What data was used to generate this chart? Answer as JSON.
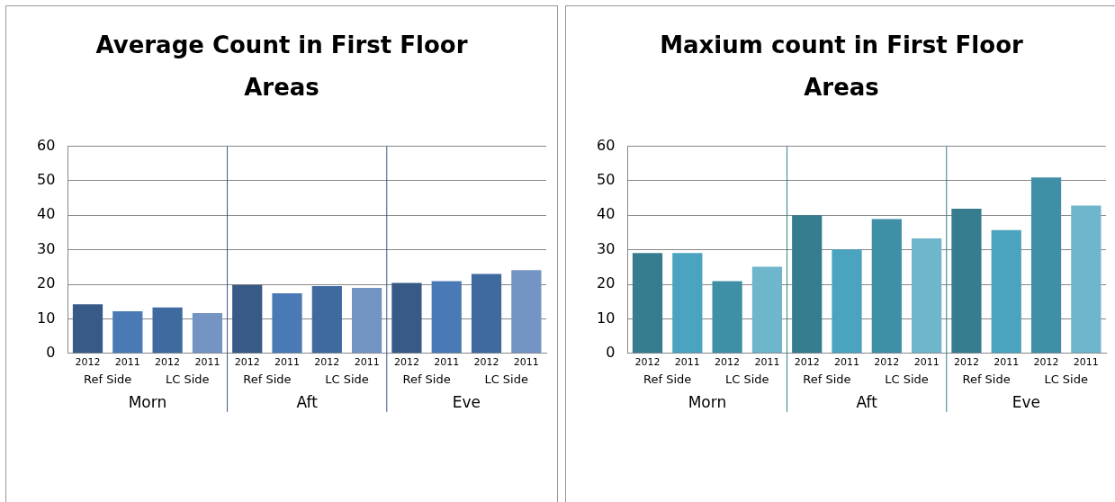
{
  "chart_data": [
    {
      "type": "bar",
      "title": "Average Count in First Floor Areas",
      "categories": [
        "2012",
        "2011",
        "2012",
        "2011",
        "2012",
        "2011",
        "2012",
        "2011",
        "2012",
        "2011",
        "2012",
        "2011"
      ],
      "values": [
        14.2,
        12.2,
        13.3,
        11.7,
        19.8,
        17.4,
        19.5,
        19.0,
        20.4,
        20.9,
        23.0,
        24.1
      ],
      "colors": [
        "#375a87",
        "#4a7ab5",
        "#3f6aa0",
        "#7494c4",
        "#375a87",
        "#4a7ab5",
        "#3f6aa0",
        "#7494c4",
        "#375a87",
        "#4a7ab5",
        "#3f6aa0",
        "#7494c4"
      ],
      "ylim": [
        0,
        60
      ],
      "yticks": [
        0,
        10,
        20,
        30,
        40,
        50,
        60
      ],
      "grid": "y",
      "legend": false,
      "annotations": [
        "Ref Side",
        "LC Side",
        "Ref Side",
        "LC Side",
        "Ref Side",
        "LC Side",
        "Morn",
        "Aft",
        "Eve"
      ]
    },
    {
      "type": "bar",
      "title": "Maxium count in First Floor Areas",
      "categories": [
        "2012",
        "2011",
        "2012",
        "2011",
        "2012",
        "2011",
        "2012",
        "2011",
        "2012",
        "2011",
        "2012",
        "2011"
      ],
      "values": [
        29.1,
        29.1,
        20.9,
        25.1,
        40.0,
        30.1,
        38.9,
        33.3,
        41.9,
        35.7,
        51.0,
        42.8
      ],
      "colors": [
        "#367c8f",
        "#4aa3bf",
        "#3f90a6",
        "#6fb5cc",
        "#367c8f",
        "#4aa3bf",
        "#3f90a6",
        "#6fb5cc",
        "#367c8f",
        "#4aa3bf",
        "#3f90a6",
        "#6fb5cc"
      ],
      "ylim": [
        0,
        60
      ],
      "yticks": [
        0,
        10,
        20,
        30,
        40,
        50,
        60
      ],
      "grid": "y",
      "legend": false,
      "annotations": [
        "Ref Side",
        "LC Side",
        "Ref Side",
        "LC Side",
        "Ref Side",
        "LC Side",
        "Morn",
        "Aft",
        "Eve"
      ]
    }
  ]
}
